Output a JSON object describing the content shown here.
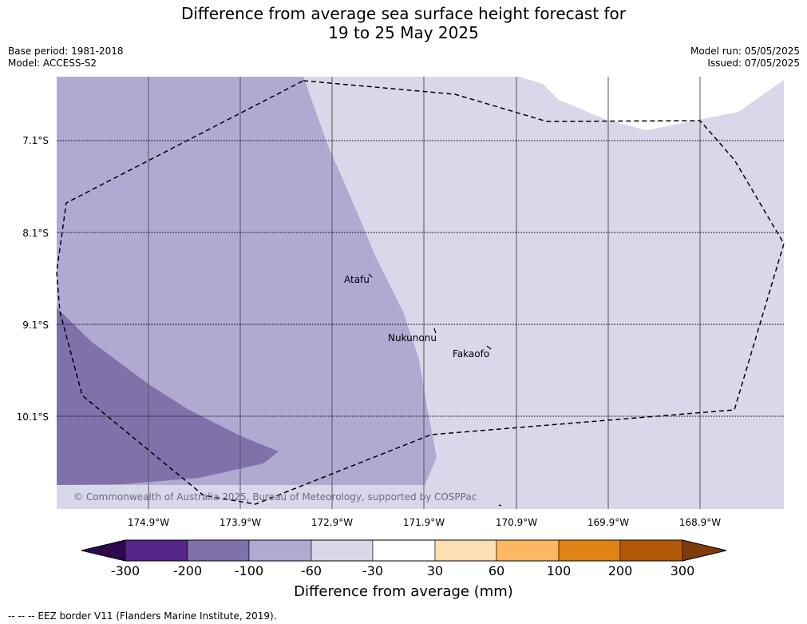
{
  "title": {
    "line1": "Difference from average sea surface height forecast for",
    "line2": "19 to 25 May 2025"
  },
  "meta_left": {
    "base_period": "Base period: 1981-2018",
    "model": "Model: ACCESS-S2"
  },
  "meta_right": {
    "model_run": "Model run: 05/05/2025",
    "issued": "Issued: 07/05/2025"
  },
  "map": {
    "latitude_labels": [
      "7.1°S",
      "8.1°S",
      "9.1°S",
      "10.1°S"
    ],
    "longitude_labels": [
      "174.9°W",
      "173.9°W",
      "172.9°W",
      "171.9°W",
      "170.9°W",
      "169.9°W",
      "168.9°W"
    ],
    "places": [
      "Atafu",
      "Nukunonu",
      "Fakaofo"
    ],
    "copyright": "© Commonwealth of Australia 2025, Bureau of Meteorology, supported by COSPPac",
    "shading_colors": {
      "minus100_to_minus60": "#b0aad2",
      "minus200_to_minus100": "#8071ab",
      "minus60_to_minus30": "#d9d8ea"
    }
  },
  "colorbar": {
    "title": "Difference from average (mm)",
    "ticks": [
      "-300",
      "-200",
      "-100",
      "-60",
      "-30",
      "30",
      "60",
      "100",
      "200",
      "300"
    ],
    "colors": [
      "#2d0a4e",
      "#55248a",
      "#8071ab",
      "#b0aad2",
      "#d9d8ea",
      "#ffffff",
      "#fedfb3",
      "#fbb761",
      "#e08214",
      "#b35806",
      "#7f3b08"
    ]
  },
  "footnote": "--  --  -- EEZ border V11 (Flanders Marine Institute, 2019)."
}
